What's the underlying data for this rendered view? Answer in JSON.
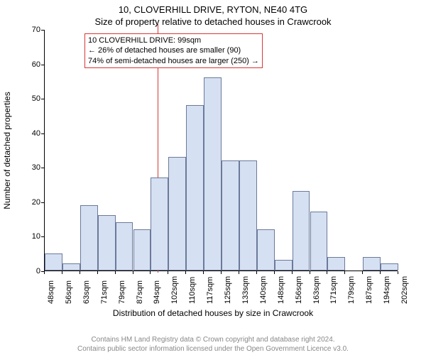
{
  "header": {
    "address": "10, CLOVERHILL DRIVE, RYTON, NE40 4TG",
    "subtitle": "Size of property relative to detached houses in Crawcrook"
  },
  "chart": {
    "type": "histogram",
    "bar_fill": "#d6e0f3",
    "bar_stroke": "#6b7a99",
    "background_color": "#ffffff",
    "reference_line_color": "#d93636",
    "reference_value_sqm": 99,
    "x_start_sqm": 48,
    "x_bin_width_sqm": 8,
    "x_labels": [
      "48sqm",
      "56sqm",
      "63sqm",
      "71sqm",
      "79sqm",
      "87sqm",
      "94sqm",
      "102sqm",
      "110sqm",
      "117sqm",
      "125sqm",
      "133sqm",
      "140sqm",
      "148sqm",
      "156sqm",
      "163sqm",
      "171sqm",
      "179sqm",
      "187sqm",
      "194sqm",
      "202sqm"
    ],
    "bars": [
      5,
      2,
      19,
      16,
      14,
      12,
      27,
      33,
      48,
      56,
      32,
      32,
      12,
      3,
      23,
      17,
      4,
      0,
      4,
      2
    ],
    "bar_count": 20,
    "y_ticks": [
      0,
      10,
      20,
      30,
      40,
      50,
      60,
      70
    ],
    "ymax": 70,
    "y_axis_label": "Number of detached properties",
    "x_axis_label": "Distribution of detached houses by size in Crawcrook",
    "label_fontsize": 12,
    "tick_fontsize": 11
  },
  "callout": {
    "line1": "10 CLOVERHILL DRIVE: 99sqm",
    "line2": "← 26% of detached houses are smaller (90)",
    "line3": "74% of semi-detached houses are larger (250) →"
  },
  "footer": {
    "line1": "Contains HM Land Registry data © Crown copyright and database right 2024.",
    "line2": "Contains public sector information licensed under the Open Government Licence v3.0."
  }
}
